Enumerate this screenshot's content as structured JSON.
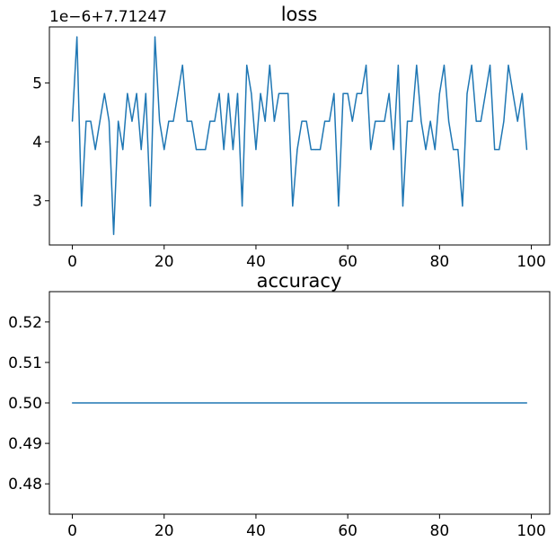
{
  "chart_data": [
    {
      "type": "line",
      "title": "loss",
      "offset_text": "1e−6+7.71247",
      "xlabel": "",
      "ylabel": "",
      "xlim": [
        -5,
        104
      ],
      "ylim": [
        2.25,
        5.95
      ],
      "xticks": [
        0,
        20,
        40,
        60,
        80,
        100
      ],
      "yticks": [
        3,
        4,
        5
      ],
      "grid": false,
      "color": "#1f77b4",
      "series": [
        {
          "x": [
            0,
            1,
            2,
            3,
            4,
            5,
            6,
            7,
            8,
            9,
            10,
            11,
            12,
            13,
            14,
            15,
            16,
            17,
            18,
            19,
            20,
            21,
            22,
            23,
            24,
            25,
            26,
            27,
            28,
            29,
            30,
            31,
            32,
            33,
            34,
            35,
            36,
            37,
            38,
            39,
            40,
            41,
            42,
            43,
            44,
            45,
            46,
            47,
            48,
            49,
            50,
            51,
            52,
            53,
            54,
            55,
            56,
            57,
            58,
            59,
            60,
            61,
            62,
            63,
            64,
            65,
            66,
            67,
            68,
            69,
            70,
            71,
            72,
            73,
            74,
            75,
            76,
            77,
            78,
            79,
            80,
            81,
            82,
            83,
            84,
            85,
            86,
            87,
            88,
            89,
            90,
            91,
            92,
            93,
            94,
            95,
            96,
            97,
            98,
            99
          ],
          "values": [
            4.35,
            5.78,
            2.91,
            4.35,
            4.35,
            3.87,
            4.35,
            4.82,
            4.35,
            2.43,
            4.35,
            3.87,
            4.82,
            4.35,
            4.82,
            3.87,
            4.82,
            2.91,
            5.78,
            4.35,
            3.87,
            4.35,
            4.35,
            4.82,
            5.3,
            4.35,
            4.35,
            3.87,
            3.87,
            3.87,
            4.35,
            4.35,
            4.82,
            3.87,
            4.82,
            3.87,
            4.82,
            2.91,
            5.3,
            4.82,
            3.87,
            4.82,
            4.35,
            5.3,
            4.35,
            4.82,
            4.82,
            4.82,
            2.91,
            3.87,
            4.35,
            4.35,
            3.87,
            3.87,
            3.87,
            4.35,
            4.35,
            4.82,
            2.91,
            4.82,
            4.82,
            4.35,
            4.82,
            4.82,
            5.3,
            3.87,
            4.35,
            4.35,
            4.35,
            4.82,
            3.87,
            5.3,
            2.91,
            4.35,
            4.35,
            5.3,
            4.35,
            3.87,
            4.35,
            3.87,
            4.82,
            5.3,
            4.35,
            3.87,
            3.87,
            2.91,
            4.82,
            5.3,
            4.35,
            4.35,
            4.82,
            5.3,
            3.87,
            3.87,
            4.35,
            5.3,
            4.82,
            4.35,
            4.82,
            3.87
          ]
        }
      ]
    },
    {
      "type": "line",
      "title": "accuracy",
      "xlabel": "",
      "ylabel": "",
      "xlim": [
        -5,
        104
      ],
      "ylim": [
        0.4725,
        0.5275
      ],
      "xticks": [
        0,
        20,
        40,
        60,
        80,
        100
      ],
      "yticks": [
        "0.48",
        "0.49",
        "0.50",
        "0.51",
        "0.52"
      ],
      "grid": false,
      "color": "#1f77b4",
      "series": [
        {
          "x": [
            0,
            99
          ],
          "values": [
            0.5,
            0.5
          ]
        }
      ]
    }
  ]
}
